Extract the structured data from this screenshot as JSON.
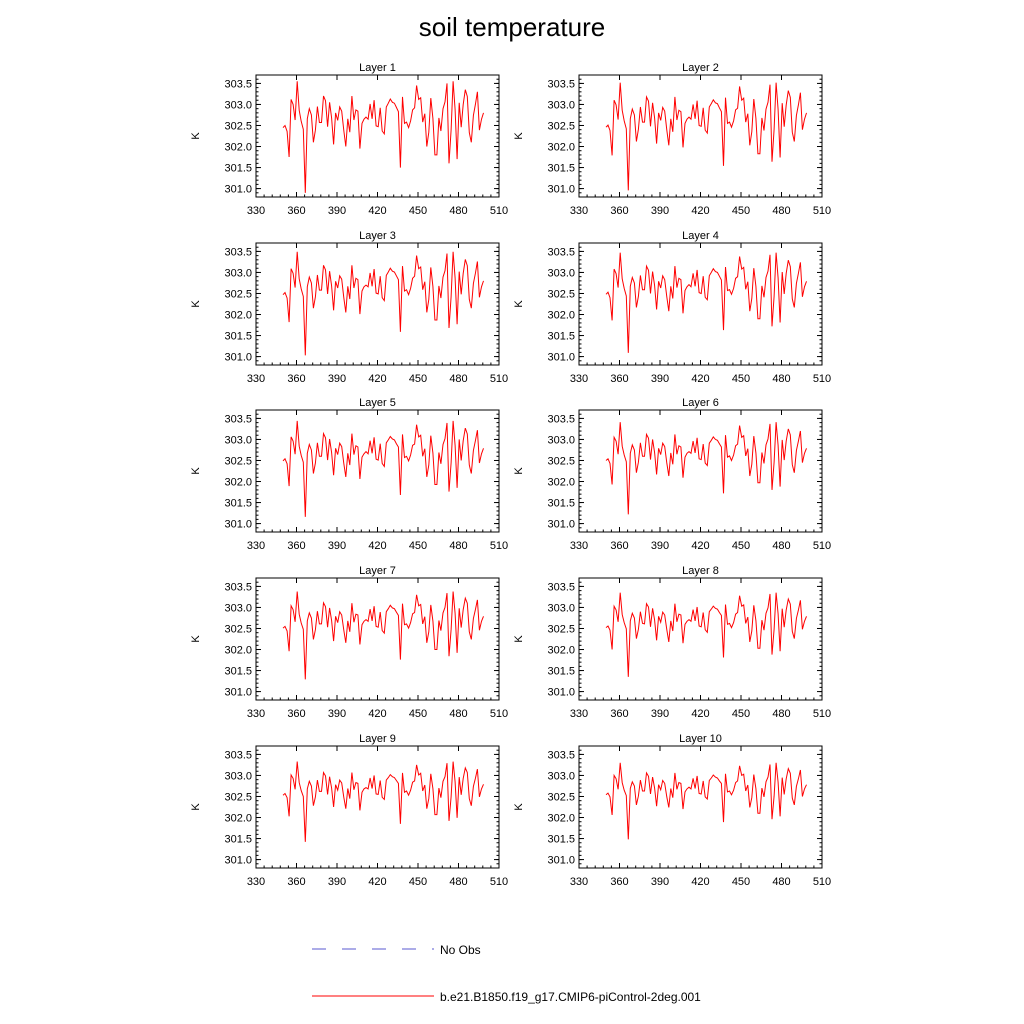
{
  "title": "soil temperature",
  "colors": {
    "model": "#ff0000",
    "obs": "#5a5ad2",
    "axis": "#000000"
  },
  "legend": {
    "entries": [
      {
        "label": "No Obs",
        "style": "dashed",
        "color": "#5a5ad2"
      },
      {
        "label": "b.e21.B1850.f19_g17.CMIP6-piControl-2deg.001",
        "style": "solid",
        "color": "#ff0000"
      }
    ]
  },
  "chart_data": [
    {
      "type": "line",
      "title": "Layer 1",
      "xlabel": "",
      "ylabel": "K",
      "xlim": [
        330,
        510
      ],
      "ylim": [
        300.8,
        303.7
      ],
      "xticks": [
        330,
        360,
        390,
        420,
        450,
        480,
        510
      ],
      "yticks": [
        "301.0",
        "301.5",
        "302.0",
        "302.5",
        "303.0",
        "303.5"
      ],
      "series": [
        {
          "x_start": 350,
          "x_step": 1.5,
          "values": []
        }
      ]
    },
    {
      "type": "line",
      "title": "Layer 2",
      "xlabel": "",
      "ylabel": "K",
      "xlim": [
        330,
        510
      ],
      "ylim": [
        300.8,
        303.7
      ],
      "xticks": [
        330,
        360,
        390,
        420,
        450,
        480,
        510
      ],
      "yticks": [
        "301.0",
        "301.5",
        "302.0",
        "302.5",
        "303.0",
        "303.5"
      ],
      "series": [
        {
          "x_start": 350,
          "x_step": 1.5,
          "values": []
        }
      ]
    },
    {
      "type": "line",
      "title": "Layer 3",
      "xlabel": "",
      "ylabel": "K",
      "xlim": [
        330,
        510
      ],
      "ylim": [
        300.8,
        303.7
      ],
      "xticks": [
        330,
        360,
        390,
        420,
        450,
        480,
        510
      ],
      "yticks": [
        "301.0",
        "301.5",
        "302.0",
        "302.5",
        "303.0",
        "303.5"
      ],
      "series": [
        {
          "x_start": 350,
          "x_step": 1.5,
          "values": []
        }
      ]
    },
    {
      "type": "line",
      "title": "Layer 4",
      "xlabel": "",
      "ylabel": "K",
      "xlim": [
        330,
        510
      ],
      "ylim": [
        300.8,
        303.7
      ],
      "xticks": [
        330,
        360,
        390,
        420,
        450,
        480,
        510
      ],
      "yticks": [
        "301.0",
        "301.5",
        "302.0",
        "302.5",
        "303.0",
        "303.5"
      ],
      "series": [
        {
          "x_start": 350,
          "x_step": 1.5,
          "values": []
        }
      ]
    },
    {
      "type": "line",
      "title": "Layer 5",
      "xlabel": "",
      "ylabel": "K",
      "xlim": [
        330,
        510
      ],
      "ylim": [
        300.8,
        303.7
      ],
      "xticks": [
        330,
        360,
        390,
        420,
        450,
        480,
        510
      ],
      "yticks": [
        "301.0",
        "301.5",
        "302.0",
        "302.5",
        "303.0",
        "303.5"
      ],
      "series": [
        {
          "x_start": 350,
          "x_step": 1.5,
          "values": []
        }
      ]
    },
    {
      "type": "line",
      "title": "Layer 6",
      "xlabel": "",
      "ylabel": "K",
      "xlim": [
        330,
        510
      ],
      "ylim": [
        300.8,
        303.7
      ],
      "xticks": [
        330,
        360,
        390,
        420,
        450,
        480,
        510
      ],
      "yticks": [
        "301.0",
        "301.5",
        "302.0",
        "302.5",
        "303.0",
        "303.5"
      ],
      "series": [
        {
          "x_start": 350,
          "x_step": 1.5,
          "values": []
        }
      ]
    },
    {
      "type": "line",
      "title": "Layer 7",
      "xlabel": "",
      "ylabel": "K",
      "xlim": [
        330,
        510
      ],
      "ylim": [
        300.8,
        303.7
      ],
      "xticks": [
        330,
        360,
        390,
        420,
        450,
        480,
        510
      ],
      "yticks": [
        "301.0",
        "301.5",
        "302.0",
        "302.5",
        "303.0",
        "303.5"
      ],
      "series": [
        {
          "x_start": 350,
          "x_step": 1.5,
          "values": []
        }
      ]
    },
    {
      "type": "line",
      "title": "Layer 8",
      "xlabel": "",
      "ylabel": "K",
      "xlim": [
        330,
        510
      ],
      "ylim": [
        300.8,
        303.7
      ],
      "xticks": [
        330,
        360,
        390,
        420,
        450,
        480,
        510
      ],
      "yticks": [
        "301.0",
        "301.5",
        "302.0",
        "302.5",
        "303.0",
        "303.5"
      ],
      "series": [
        {
          "x_start": 350,
          "x_step": 1.5,
          "values": []
        }
      ]
    },
    {
      "type": "line",
      "title": "Layer 9",
      "xlabel": "",
      "ylabel": "K",
      "xlim": [
        330,
        510
      ],
      "ylim": [
        300.8,
        303.7
      ],
      "xticks": [
        330,
        360,
        390,
        420,
        450,
        480,
        510
      ],
      "yticks": [
        "301.0",
        "301.5",
        "302.0",
        "302.5",
        "303.0",
        "303.5"
      ],
      "series": [
        {
          "x_start": 350,
          "x_step": 1.5,
          "values": []
        }
      ]
    },
    {
      "type": "line",
      "title": "Layer 10",
      "xlabel": "",
      "ylabel": "K",
      "xlim": [
        330,
        510
      ],
      "ylim": [
        300.8,
        303.7
      ],
      "xticks": [
        330,
        360,
        390,
        420,
        450,
        480,
        510
      ],
      "yticks": [
        "301.0",
        "301.5",
        "302.0",
        "302.5",
        "303.0",
        "303.5"
      ],
      "series": [
        {
          "x_start": 350,
          "x_step": 1.5,
          "values": []
        }
      ]
    }
  ]
}
